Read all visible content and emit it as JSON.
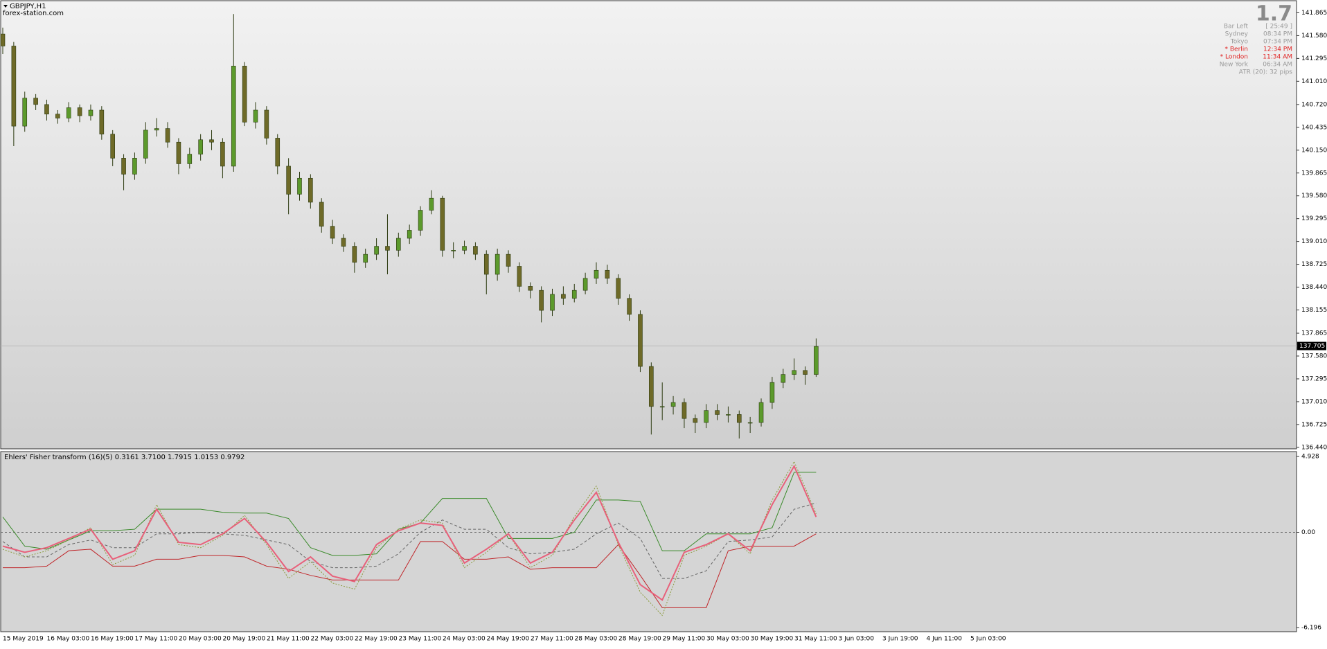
{
  "chart_data": [
    {
      "type": "candlestick",
      "title": "GBPJPY,H1",
      "subtitle": "forex-station.com",
      "open": [
        141.6,
        141.45,
        140.45,
        140.8,
        140.72,
        140.6,
        140.55,
        140.68,
        140.58,
        140.65,
        140.35,
        140.05,
        139.85,
        140.05,
        140.4,
        140.42,
        140.25,
        139.98,
        140.1,
        140.28,
        140.25,
        139.95,
        141.2,
        140.5,
        140.65,
        140.3,
        139.95,
        139.6,
        139.8,
        139.5,
        139.2,
        139.05,
        138.95,
        138.75,
        138.85,
        138.95,
        138.9,
        139.05,
        139.15,
        139.4,
        139.55,
        138.9,
        138.9,
        138.95,
        138.85,
        138.6,
        138.85,
        138.7,
        138.45,
        138.4,
        138.15,
        138.35,
        138.3,
        138.4,
        138.55,
        138.65,
        138.55,
        138.3,
        138.1,
        137.45,
        136.95,
        136.95,
        137.0,
        136.8,
        136.75,
        136.9,
        136.85,
        136.85,
        136.75,
        136.75,
        137.0,
        137.25,
        137.35,
        137.4,
        137.35
      ],
      "high": [
        141.68,
        141.5,
        140.88,
        140.85,
        140.78,
        140.65,
        140.75,
        140.72,
        140.72,
        140.7,
        140.4,
        140.1,
        140.12,
        140.5,
        140.55,
        140.5,
        140.3,
        140.18,
        140.35,
        140.4,
        140.3,
        141.85,
        141.25,
        140.75,
        140.7,
        140.35,
        140.05,
        139.88,
        139.85,
        139.55,
        139.28,
        139.1,
        139.0,
        138.92,
        139.05,
        139.35,
        139.12,
        139.22,
        139.45,
        139.65,
        139.58,
        139.0,
        139.02,
        139.0,
        138.9,
        138.92,
        138.9,
        138.75,
        138.5,
        138.45,
        138.42,
        138.45,
        138.48,
        138.62,
        138.75,
        138.72,
        138.6,
        138.35,
        138.15,
        137.5,
        137.25,
        137.08,
        137.05,
        136.85,
        136.98,
        136.98,
        136.95,
        136.9,
        136.82,
        137.05,
        137.32,
        137.42,
        137.55,
        137.45,
        137.8
      ],
      "low": [
        141.35,
        140.2,
        140.38,
        140.65,
        140.52,
        140.48,
        140.5,
        140.5,
        140.52,
        140.28,
        139.95,
        139.65,
        139.78,
        139.98,
        140.32,
        140.18,
        139.85,
        139.92,
        140.02,
        140.15,
        139.8,
        139.88,
        140.45,
        140.42,
        140.22,
        139.85,
        139.35,
        139.52,
        139.42,
        139.12,
        138.98,
        138.88,
        138.62,
        138.68,
        138.78,
        138.6,
        138.82,
        138.98,
        139.08,
        139.35,
        138.82,
        138.8,
        138.85,
        138.78,
        138.35,
        138.52,
        138.62,
        138.38,
        138.3,
        138.0,
        138.08,
        138.22,
        138.25,
        138.35,
        138.48,
        138.48,
        138.22,
        138.02,
        137.38,
        136.6,
        136.78,
        136.85,
        136.68,
        136.62,
        136.68,
        136.78,
        136.75,
        136.55,
        136.62,
        136.7,
        136.92,
        137.18,
        137.28,
        137.22,
        137.32
      ],
      "close": [
        141.45,
        140.45,
        140.8,
        140.72,
        140.6,
        140.55,
        140.68,
        140.58,
        140.65,
        140.35,
        140.05,
        139.85,
        140.05,
        140.4,
        140.42,
        140.25,
        139.98,
        140.1,
        140.28,
        140.25,
        139.95,
        141.2,
        140.5,
        140.65,
        140.3,
        139.95,
        139.6,
        139.8,
        139.5,
        139.2,
        139.05,
        138.95,
        138.75,
        138.85,
        138.95,
        138.9,
        139.05,
        139.15,
        139.4,
        139.55,
        138.9,
        138.9,
        138.95,
        138.85,
        138.6,
        138.85,
        138.7,
        138.45,
        138.4,
        138.15,
        138.35,
        138.3,
        138.4,
        138.55,
        138.65,
        138.55,
        138.3,
        138.1,
        137.45,
        136.95,
        136.95,
        137.0,
        136.8,
        136.75,
        136.9,
        136.85,
        136.85,
        136.75,
        136.75,
        137.0,
        137.25,
        137.35,
        137.4,
        137.35,
        137.7
      ],
      "colors": {
        "up": "#5c9a2c",
        "down": "#6e6a28",
        "wick": "#2c3a10"
      },
      "ylim": [
        136.43,
        141.99
      ],
      "yticks": [
        141.865,
        {
          "value": 141.58,
          "label": "141.580"
        },
        141.295,
        {
          "value": 141.01,
          "label": "141.010"
        },
        {
          "value": 140.72,
          "label": "140.720"
        },
        140.435,
        {
          "value": 140.15,
          "label": "140.150"
        },
        139.865,
        {
          "value": 139.58,
          "label": "139.580"
        },
        139.295,
        {
          "value": 139.01,
          "label": "139.010"
        },
        138.725,
        {
          "value": 138.44,
          "label": "138.440"
        },
        138.155,
        137.865,
        {
          "value": 137.58,
          "label": "137.580"
        },
        137.295,
        {
          "value": 137.01,
          "label": "137.010"
        },
        136.725,
        {
          "value": 136.44,
          "label": "136.440"
        }
      ],
      "last_price": 137.705,
      "time_labels": [
        "15 May 2019",
        "16 May 03:00",
        "16 May 19:00",
        "17 May 11:00",
        "20 May 03:00",
        "20 May 19:00",
        "21 May 11:00",
        "22 May 03:00",
        "22 May 19:00",
        "23 May 11:00",
        "24 May 03:00",
        "24 May 19:00",
        "27 May 11:00",
        "28 May 03:00",
        "28 May 19:00",
        "29 May 11:00",
        "30 May 03:00",
        "30 May 19:00",
        "31 May 11:00",
        "3 Jun 03:00",
        "3 Jun 19:00",
        "4 Jun 11:00",
        "5 Jun 03:00"
      ]
    },
    {
      "type": "line",
      "title": "Ehlers' Fisher transform (16)(5) 0.3161 3.7100 1.7915 1.0153 0.9792",
      "ylim": [
        -6.415,
        5.2
      ],
      "yticks": [
        4.928,
        {
          "value": 0,
          "label": "0.00"
        },
        -6.196
      ],
      "zero_line": true,
      "series": [
        {
          "color": "#3a8a2a",
          "dash": "none",
          "values": [
            1.0,
            -0.9,
            -1.1,
            -0.5,
            0.1,
            0.1,
            0.2,
            1.5,
            1.5,
            1.5,
            1.3,
            1.25,
            1.25,
            0.9,
            -1.0,
            -1.5,
            -1.5,
            -1.4,
            0.2,
            0.6,
            2.2,
            2.2,
            2.2,
            -0.4,
            -0.4,
            -0.4,
            0.0,
            2.1,
            2.1,
            2.0,
            -1.2,
            -1.2,
            -0.1,
            -0.1,
            -0.1,
            0.3,
            3.9,
            3.9
          ]
        },
        {
          "color": "#c0262a",
          "dash": "none",
          "values": [
            -2.3,
            -2.3,
            -2.2,
            -1.2,
            -1.1,
            -2.2,
            -2.2,
            -1.75,
            -1.75,
            -1.5,
            -1.5,
            -1.6,
            -2.2,
            -2.4,
            -2.8,
            -3.1,
            -3.1,
            -3.1,
            -3.1,
            -0.6,
            -0.6,
            -1.75,
            -1.75,
            -1.6,
            -2.4,
            -2.3,
            -2.3,
            -2.3,
            -0.8,
            -2.8,
            -4.9,
            -4.9,
            -4.9,
            -1.2,
            -0.9,
            -0.9,
            -0.9,
            -0.1
          ]
        },
        {
          "color": "#666666",
          "dash": "4 3",
          "values": [
            -0.6,
            -1.6,
            -1.6,
            -0.8,
            -0.5,
            -1.0,
            -1.0,
            -0.1,
            -0.1,
            0.0,
            -0.1,
            -0.2,
            -0.5,
            -0.8,
            -1.9,
            -2.3,
            -2.3,
            -2.2,
            -1.4,
            0.0,
            0.8,
            0.2,
            0.2,
            -1.0,
            -1.4,
            -1.3,
            -1.1,
            -0.1,
            0.6,
            -0.4,
            -3.0,
            -3.0,
            -2.5,
            -0.6,
            -0.5,
            -0.3,
            1.5,
            1.9
          ]
        },
        {
          "color": "#8a9a3a",
          "dash": "2 2",
          "values": [
            -1.1,
            -1.6,
            -1.2,
            -0.5,
            0.3,
            -2.1,
            -1.5,
            1.8,
            -0.8,
            -1.0,
            -0.2,
            1.1,
            -0.8,
            -3.0,
            -1.9,
            -3.3,
            -3.7,
            -1.0,
            0.2,
            0.8,
            0.6,
            -2.3,
            -1.3,
            -0.1,
            -2.3,
            -1.5,
            1.0,
            3.0,
            -0.8,
            -3.9,
            -5.4,
            -1.5,
            -0.9,
            -0.1,
            -1.4,
            2.1,
            4.6,
            1.2
          ]
        },
        {
          "color": "#e8607a",
          "dash": "none",
          "values": [
            -0.9,
            -1.3,
            -1.0,
            -0.4,
            0.2,
            -1.75,
            -1.2,
            1.5,
            -0.65,
            -0.8,
            -0.1,
            0.9,
            -0.65,
            -2.55,
            -1.6,
            -2.85,
            -3.2,
            -0.8,
            0.1,
            0.6,
            0.45,
            -2.0,
            -1.1,
            -0.1,
            -2.0,
            -1.3,
            0.8,
            2.6,
            -0.65,
            -3.4,
            -4.4,
            -1.3,
            -0.8,
            -0.1,
            -1.2,
            1.8,
            4.3,
            1.0
          ]
        }
      ]
    }
  ],
  "info": {
    "big": "1.7",
    "rows": [
      {
        "label": "Bar Left",
        "value": "[ 25:49 ]",
        "color": "#9a9a9a"
      },
      {
        "label": "Sydney",
        "value": "08:34 PM",
        "color": "#9a9a9a"
      },
      {
        "label": "Tokyo",
        "value": "07:34 PM",
        "color": "#9a9a9a"
      },
      {
        "label": "* Berlin",
        "value": "12:34 PM",
        "color": "#e02020"
      },
      {
        "label": "* London",
        "value": "11:34 AM",
        "color": "#e02020"
      },
      {
        "label": "New York",
        "value": "06:34 AM",
        "color": "#9a9a9a"
      }
    ],
    "atr": "ATR (20): 32 pips"
  }
}
